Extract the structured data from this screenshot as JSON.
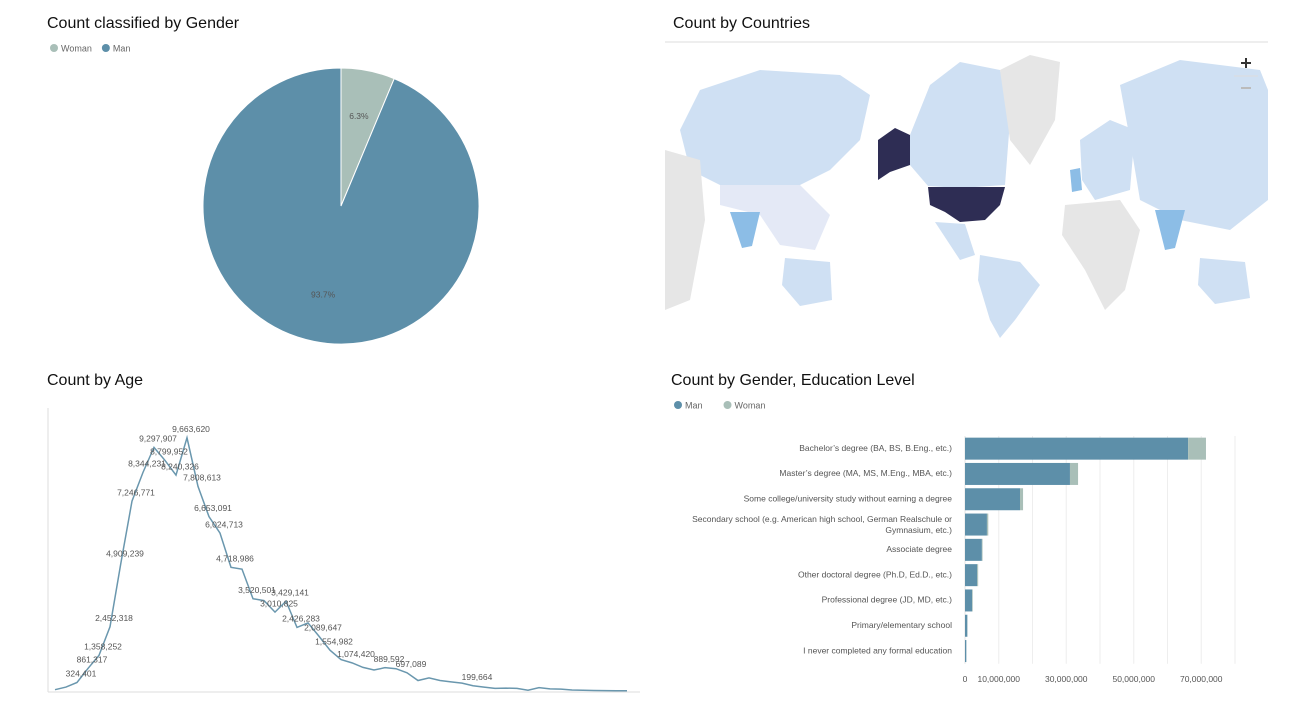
{
  "chart_data": [
    {
      "type": "pie",
      "title": "Count classified by Gender",
      "categories": [
        "Woman",
        "Man"
      ],
      "values": [
        6.3,
        93.7
      ],
      "value_labels": [
        "6.3%",
        "93.7%"
      ],
      "colors": [
        "#a9bfb8",
        "#5d8fa9"
      ]
    },
    {
      "type": "map",
      "title": "Count by Countries"
    },
    {
      "type": "line",
      "title": "Count by Age",
      "color": "#6a97ae",
      "values": [
        50000,
        150000,
        324401,
        861317,
        1358252,
        2452318,
        4909239,
        7246771,
        8344231,
        9297907,
        8799952,
        8240326,
        9663620,
        7808613,
        6653091,
        6024713,
        4718986,
        4650000,
        3520501,
        3450000,
        3010825,
        3429141,
        2426283,
        2600000,
        2089647,
        1554982,
        1200000,
        1074420,
        900000,
        800000,
        889592,
        850000,
        697089,
        400000,
        500000,
        400000,
        350000,
        300000,
        199664,
        150000,
        100000,
        110000,
        100000,
        30000,
        130000,
        80000,
        70000,
        40000,
        30000,
        20000,
        15000,
        10000,
        8000
      ],
      "value_labels": [
        null,
        null,
        "324,401",
        "861,317",
        "1,358,252",
        "2,452,318",
        "4,909,239",
        "7,246,771",
        "8,344,231",
        "9,297,907",
        "8,799,952",
        "8,240,326",
        "9,663,620",
        "7,808,613",
        "6,653,091",
        "6,024,713",
        "4,718,986",
        null,
        "3,520,501",
        null,
        "3,010,825",
        "3,429,141",
        "2,426,283",
        null,
        "2,089,647",
        "1,554,982",
        null,
        "1,074,420",
        null,
        null,
        "889,592",
        null,
        "697,089",
        null,
        null,
        null,
        null,
        null,
        "199,664",
        null,
        null,
        null,
        null,
        null,
        null,
        null,
        null,
        null,
        null,
        null,
        null,
        null,
        null
      ],
      "ylim": [
        0,
        10800000
      ]
    },
    {
      "type": "stacked-barh",
      "title": "Count by Gender, Education Level",
      "categories": [
        "Bachelor’s degree (BA, BS, B.Eng., etc.)",
        "Master’s degree (MA, MS, M.Eng., MBA, etc.)",
        "Some college/university study without earning a degree",
        "Secondary school (e.g. American high school, German Realschule or Gymnasium, etc.)",
        "Associate degree",
        "Other doctoral degree (Ph.D, Ed.D., etc.)",
        "Professional degree (JD, MD, etc.)",
        "Primary/elementary school",
        "I never completed any formal education"
      ],
      "series": [
        {
          "name": "Man",
          "color": "#5d8fa9",
          "values": [
            66100000,
            31100000,
            16300000,
            6500000,
            5000000,
            3600000,
            2100000,
            700000,
            400000
          ]
        },
        {
          "name": "Woman",
          "color": "#a9bfb8",
          "values": [
            5300000,
            2400000,
            900000,
            400000,
            200000,
            300000,
            200000,
            50000,
            30000
          ]
        }
      ],
      "xlim": [
        0,
        80000000
      ],
      "xticks": [
        0,
        {
          "value": 10000000,
          "label": "10,000,000"
        },
        {
          "value": 30000000,
          "label": "30,000,000"
        },
        {
          "value": 50000000,
          "label": "50,000,000"
        },
        {
          "value": 70000000,
          "label": "70,000,000"
        }
      ],
      "xgridlines": [
        20000000,
        40000000,
        60000000,
        80000000
      ],
      "grid": true
    }
  ]
}
